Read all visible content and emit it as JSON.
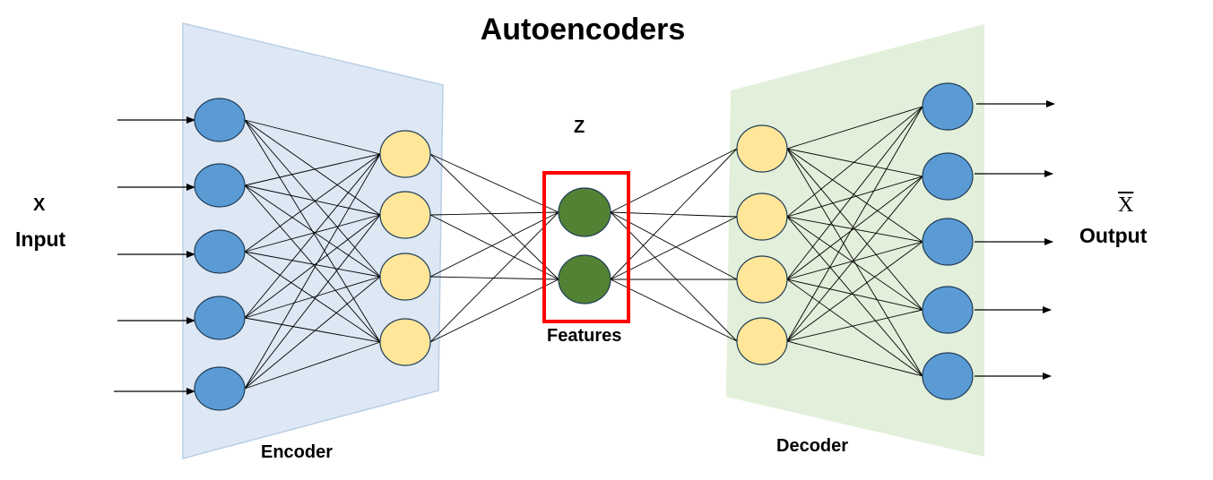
{
  "title": "Autoencoders",
  "input": {
    "symbol": "X",
    "label": "Input"
  },
  "output": {
    "symbol": "X",
    "label": "Output"
  },
  "latent": {
    "symbol": "Z",
    "label": "Features"
  },
  "encoder": {
    "label": "Encoder"
  },
  "decoder": {
    "label": "Decoder"
  },
  "colors": {
    "encoder_fill": "#dde8f4",
    "decoder_fill": "#e2efda",
    "input_node": "#5b9bd5",
    "hidden_node": "#ffe699",
    "latent_node": "#548235",
    "highlight_box": "#ff0000"
  }
}
